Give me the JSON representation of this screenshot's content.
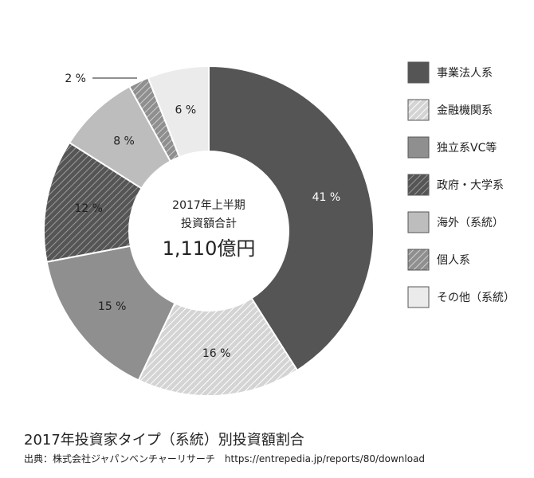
{
  "chart_data": {
    "type": "pie",
    "variant": "donut",
    "center_label": {
      "line1": "2017年上半期",
      "line2": "投資額合計",
      "total": "1,110億円"
    },
    "slices": [
      {
        "name": "事業法人系",
        "value": 41,
        "label": "41 %",
        "fill": "#555555",
        "hatched": false
      },
      {
        "name": "金融機関系",
        "value": 16,
        "label": "16 %",
        "fill": "#d4d4d4",
        "hatched": true
      },
      {
        "name": "独立系VC等",
        "value": 15,
        "label": "15 %",
        "fill": "#8f8f8f",
        "hatched": false
      },
      {
        "name": "政府・大学系",
        "value": 12,
        "label": "12 %",
        "fill": "#555555",
        "hatched": true
      },
      {
        "name": "海外（系統）",
        "value": 8,
        "label": "8 %",
        "fill": "#bdbdbd",
        "hatched": false
      },
      {
        "name": "個人系",
        "value": 2,
        "label": "2 %",
        "fill": "#8f8f8f",
        "hatched": true
      },
      {
        "name": "その他（系統）",
        "value": 6,
        "label": "6 %",
        "fill": "#ebebeb",
        "hatched": false
      }
    ],
    "legend_placement": "right"
  },
  "caption": "2017年投資家タイプ（系統）別投資額割合",
  "source": "出典：株式会社ジャパンベンチャーリサーチ　https://entrepedia.jp/reports/80/download"
}
